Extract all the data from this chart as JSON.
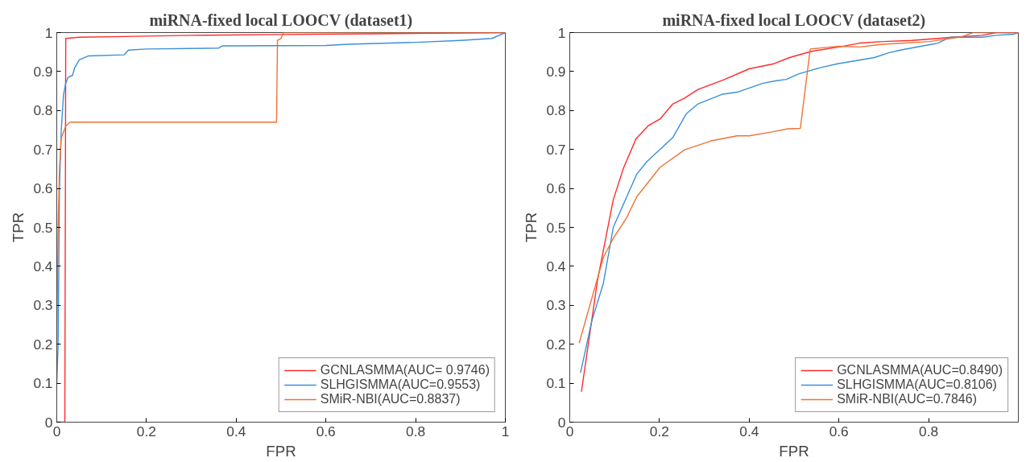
{
  "chart_data": [
    {
      "type": "line",
      "title": "miRNA-fixed local LOOCV (dataset1)",
      "xlabel": "FPR",
      "ylabel": "TPR",
      "xlim": [
        0,
        1
      ],
      "ylim": [
        0,
        1
      ],
      "xticks": [
        0,
        0.2,
        0.4,
        0.6,
        0.8,
        1
      ],
      "yticks": [
        0,
        0.1,
        0.2,
        0.3,
        0.4,
        0.5,
        0.6,
        0.7,
        0.8,
        0.9,
        1
      ],
      "grid": false,
      "legend": "bottom right",
      "line_style": "solid",
      "marker": "none",
      "series": [
        {
          "name": "GCNLASMMA(AUC= 0.9746)",
          "color": "#ff2a2a",
          "x": [
            0,
            0.018,
            0.02,
            0.05,
            0.15,
            0.3,
            0.5,
            0.7,
            0.9,
            1
          ],
          "values": [
            0,
            0,
            0.985,
            0.988,
            0.99,
            0.993,
            0.995,
            0.997,
            0.999,
            1
          ]
        },
        {
          "name": "SLHGISMMA(AUC=0.9553)",
          "color": "#3a8fd9",
          "x": [
            0,
            0.003,
            0.006,
            0.01,
            0.015,
            0.02,
            0.025,
            0.035,
            0.04,
            0.05,
            0.07,
            0.15,
            0.16,
            0.2,
            0.36,
            0.37,
            0.6,
            0.65,
            0.8,
            0.9,
            0.97,
            1
          ],
          "values": [
            0.1,
            0.2,
            0.6,
            0.75,
            0.84,
            0.87,
            0.885,
            0.89,
            0.91,
            0.93,
            0.94,
            0.943,
            0.955,
            0.958,
            0.96,
            0.966,
            0.967,
            0.97,
            0.975,
            0.98,
            0.985,
            1
          ]
        },
        {
          "name": "SMiR-NBI(AUC=0.8837)",
          "color": "#f07238",
          "x": [
            0,
            0.003,
            0.006,
            0.01,
            0.02,
            0.03,
            0.49,
            0.492,
            0.5,
            0.505,
            1
          ],
          "values": [
            0.2,
            0.5,
            0.65,
            0.73,
            0.76,
            0.77,
            0.77,
            0.98,
            0.985,
            1,
            1
          ]
        }
      ]
    },
    {
      "type": "line",
      "title": "miRNA-fixed local LOOCV (dataset2)",
      "xlabel": "FPR",
      "ylabel": "TPR",
      "xlim": [
        0,
        1
      ],
      "ylim": [
        0,
        1
      ],
      "xticks": [
        0,
        0.2,
        0.4,
        0.6,
        0.8
      ],
      "yticks": [
        0,
        0.1,
        0.2,
        0.3,
        0.4,
        0.5,
        0.6,
        0.7,
        0.8,
        0.9,
        1
      ],
      "grid": false,
      "legend": "bottom right",
      "line_style": "solid",
      "marker": "none",
      "series": [
        {
          "name": "GCNLASMMA(AUC=0.8490)",
          "color": "#ff2a2a",
          "x": [
            0.026,
            0.062,
            0.097,
            0.12,
            0.148,
            0.175,
            0.201,
            0.23,
            0.256,
            0.286,
            0.341,
            0.4,
            0.455,
            0.49,
            0.539,
            0.6,
            0.646,
            0.698,
            0.763,
            0.854,
            0.919,
            0.951,
            1
          ],
          "values": [
            0.078,
            0.365,
            0.571,
            0.653,
            0.728,
            0.761,
            0.778,
            0.817,
            0.832,
            0.854,
            0.878,
            0.907,
            0.92,
            0.936,
            0.952,
            0.963,
            0.973,
            0.977,
            0.98,
            0.988,
            0.993,
            1,
            1
          ]
        },
        {
          "name": "SLHGISMMA(AUC=0.8106)",
          "color": "#3a8fd9",
          "x": [
            0.024,
            0.049,
            0.075,
            0.097,
            0.149,
            0.172,
            0.23,
            0.26,
            0.286,
            0.341,
            0.373,
            0.431,
            0.458,
            0.483,
            0.51,
            0.562,
            0.597,
            0.679,
            0.711,
            0.737,
            0.802,
            0.821,
            0.847,
            0.919,
            0.951,
            0.99,
            1
          ],
          "values": [
            0.127,
            0.259,
            0.357,
            0.5,
            0.636,
            0.669,
            0.731,
            0.792,
            0.817,
            0.842,
            0.847,
            0.87,
            0.876,
            0.88,
            0.894,
            0.911,
            0.92,
            0.936,
            0.948,
            0.955,
            0.969,
            0.973,
            0.988,
            0.988,
            0.993,
            0.996,
            1
          ]
        },
        {
          "name": "SMiR-NBI(AUC=0.7846)",
          "color": "#f07238",
          "x": [
            0.021,
            0.075,
            0.097,
            0.127,
            0.149,
            0.201,
            0.256,
            0.315,
            0.373,
            0.4,
            0.451,
            0.487,
            0.514,
            0.536,
            0.6,
            0.646,
            0.698,
            0.802,
            0.873,
            0.899,
            1
          ],
          "values": [
            0.203,
            0.423,
            0.472,
            0.525,
            0.578,
            0.654,
            0.699,
            0.722,
            0.735,
            0.735,
            0.745,
            0.753,
            0.754,
            0.958,
            0.965,
            0.963,
            0.97,
            0.977,
            0.989,
            1,
            1
          ]
        }
      ]
    }
  ]
}
